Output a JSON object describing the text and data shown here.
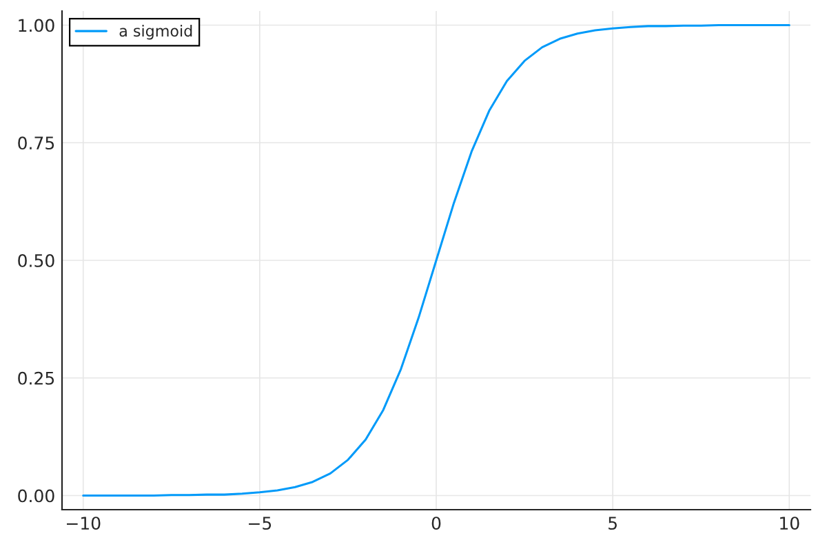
{
  "chart_data": {
    "type": "line",
    "x": [
      -10,
      -9.5,
      -9,
      -8.5,
      -8,
      -7.5,
      -7,
      -6.5,
      -6,
      -5.5,
      -5,
      -4.5,
      -4,
      -3.5,
      -3,
      -2.5,
      -2,
      -1.5,
      -1,
      -0.5,
      0,
      0.5,
      1,
      1.5,
      2,
      2.5,
      3,
      3.5,
      4,
      4.5,
      5,
      5.5,
      6,
      6.5,
      7,
      7.5,
      8,
      8.5,
      9,
      9.5,
      10
    ],
    "series": [
      {
        "name": "a sigmoid",
        "color": "#009af9",
        "values": [
          0.0,
          0.0,
          0.0,
          0.0,
          0.0,
          0.001,
          0.001,
          0.002,
          0.002,
          0.004,
          0.007,
          0.011,
          0.018,
          0.029,
          0.047,
          0.076,
          0.119,
          0.182,
          0.269,
          0.378,
          0.5,
          0.622,
          0.731,
          0.818,
          0.881,
          0.924,
          0.953,
          0.971,
          0.982,
          0.989,
          0.993,
          0.996,
          0.998,
          0.998,
          0.999,
          0.999,
          1.0,
          1.0,
          1.0,
          1.0,
          1.0
        ]
      }
    ],
    "xlim": [
      -10.6,
      10.6
    ],
    "ylim": [
      -0.03,
      1.03
    ],
    "xticks": [
      {
        "value": -10,
        "label": "−10"
      },
      {
        "value": -5,
        "label": "−5"
      },
      0,
      5,
      10
    ],
    "yticks": [
      {
        "value": 0,
        "label": "0.00"
      },
      0.25,
      {
        "value": 0.5,
        "label": "0.50"
      },
      0.75,
      {
        "value": 1,
        "label": "1.00"
      }
    ],
    "grid": true,
    "legend": "top left",
    "marker": "none",
    "line_style": "solid"
  }
}
